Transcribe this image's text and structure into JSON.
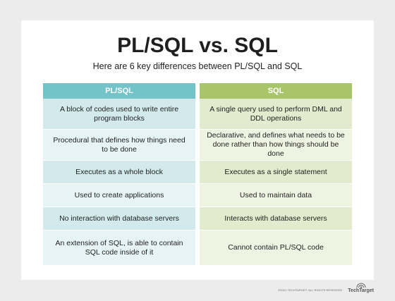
{
  "title": "PL/SQL vs. SQL",
  "subtitle": "Here are 6 key differences between PL/SQL and SQL",
  "columns": {
    "left": {
      "header": "PL/SQL",
      "rows": [
        "A block of codes used to write entire program blocks",
        "Procedural that defines how things need to be done",
        "Executes as a whole block",
        "Used to create applications",
        "No interaction with database servers",
        "An extension of SQL, is able to contain SQL code inside of it"
      ]
    },
    "right": {
      "header": "SQL",
      "rows": [
        "A single query used to perform DML and DDL operations",
        "Declarative, and defines what needs to be done rather than how things should be done",
        "Executes as a single statement",
        "Used to maintain data",
        "Interacts with database servers",
        "Cannot contain PL/SQL code"
      ]
    }
  },
  "footer": {
    "copyright": "©2021 TECHTARGET. ALL RIGHTS RESERVED",
    "brand": "TechTarget",
    "logo_icon": "techtarget-logo-icon"
  },
  "colors": {
    "plsql_header": "#74c3c9",
    "sql_header": "#a9c56a"
  }
}
